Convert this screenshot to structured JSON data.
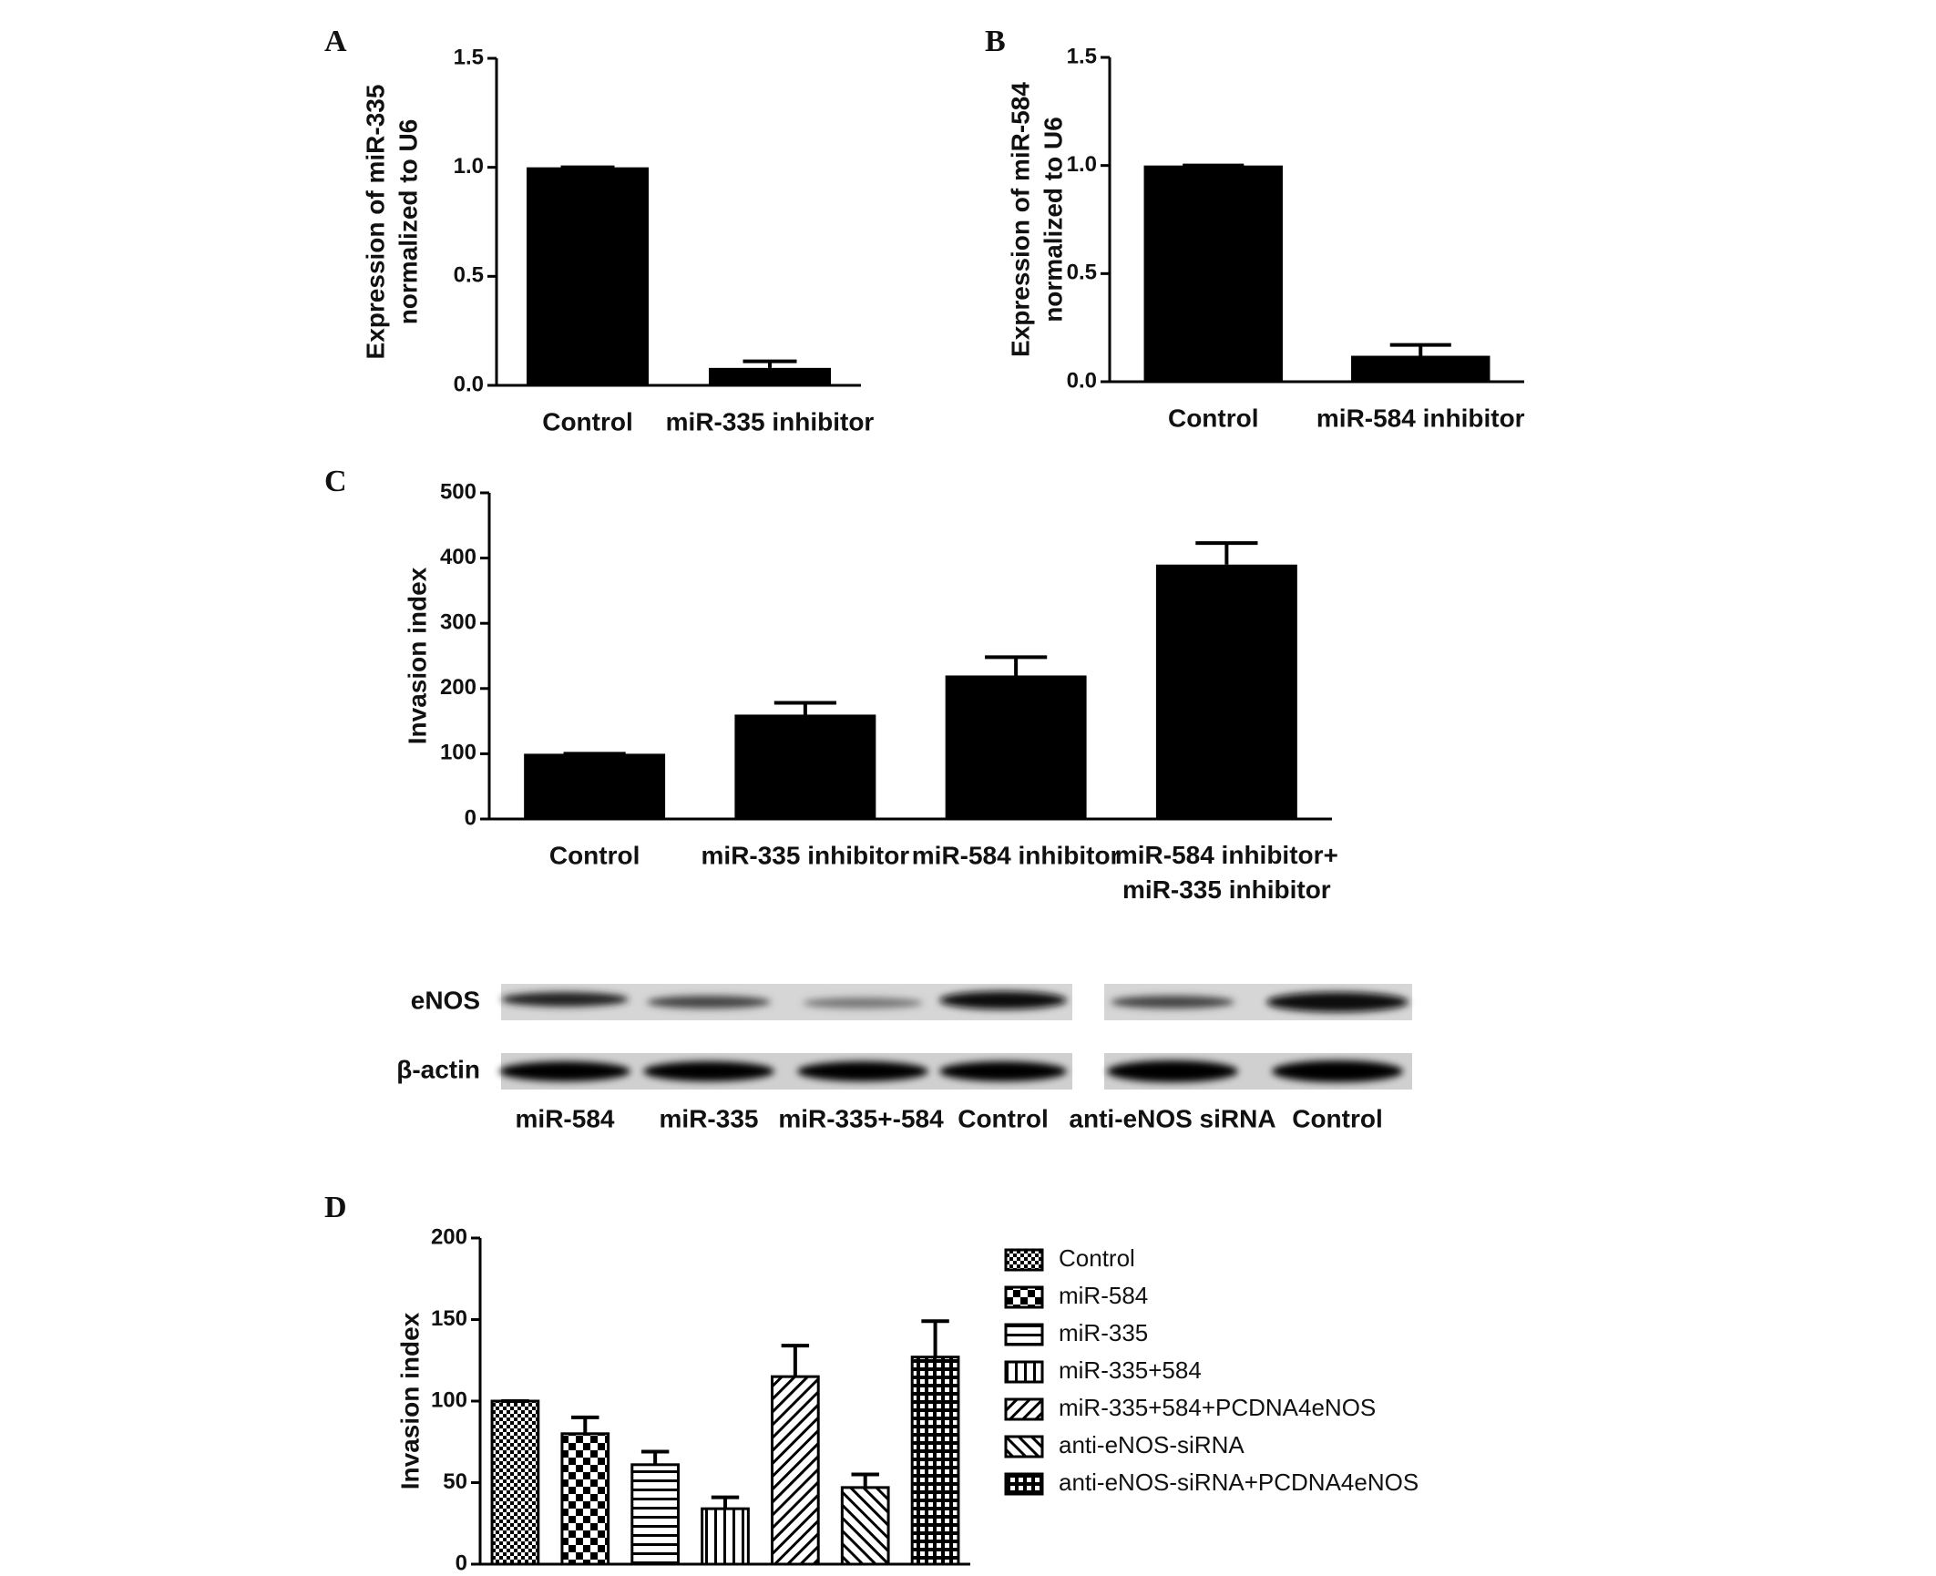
{
  "chart_data": [
    {
      "type": "bar",
      "panel": "A",
      "ylabel": [
        "Expression of miR-335",
        "normalized to U6"
      ],
      "categories": [
        "Control",
        "miR-335 inhibitor"
      ],
      "values": [
        1.0,
        0.08
      ],
      "errors": [
        0,
        0.03
      ],
      "color": "#000000",
      "ylim": [
        0,
        1.5
      ],
      "yticks": [
        {
          "value": 0,
          "label": "0.0"
        },
        {
          "value": 0.5,
          "label": "0.5"
        },
        {
          "value": 1,
          "label": "1.0"
        },
        {
          "value": 1.5,
          "label": "1.5"
        }
      ]
    },
    {
      "type": "bar",
      "panel": "B",
      "ylabel": [
        "Expression of miR-584",
        "normalized to U6"
      ],
      "categories": [
        "Control",
        "miR-584 inhibitor"
      ],
      "values": [
        1.0,
        0.12
      ],
      "errors": [
        0,
        0.05
      ],
      "color": "#000000",
      "ylim": [
        0,
        1.5
      ],
      "yticks": [
        {
          "value": 0,
          "label": "0.0"
        },
        {
          "value": 0.5,
          "label": "0.5"
        },
        {
          "value": 1,
          "label": "1.0"
        },
        {
          "value": 1.5,
          "label": "1.5"
        }
      ]
    },
    {
      "type": "bar",
      "panel": "C",
      "ylabel": [
        "Invasion index"
      ],
      "categories": [
        "Control",
        "miR-335 inhibitor",
        "miR-584 inhibitor",
        "miR-584 inhibitor+\nmiR-335 inhibitor"
      ],
      "values": [
        100,
        160,
        220,
        390
      ],
      "errors": [
        0,
        18,
        28,
        33
      ],
      "color": "#000000",
      "ylim": [
        0,
        500
      ],
      "yticks": [
        0,
        100,
        200,
        300,
        400,
        500
      ]
    },
    {
      "type": "pattern-bar",
      "panel": "D",
      "ylabel": [
        "Invasion index"
      ],
      "series": [
        {
          "name": "Control",
          "pattern": "checker-fine",
          "values": [
            100
          ],
          "errors": [
            0
          ]
        },
        {
          "name": "miR-584",
          "pattern": "checker",
          "values": [
            80
          ],
          "errors": [
            10
          ]
        },
        {
          "name": "miR-335",
          "pattern": "horizontal",
          "values": [
            61
          ],
          "errors": [
            8
          ]
        },
        {
          "name": "miR-335+584",
          "pattern": "vertical",
          "values": [
            34
          ],
          "errors": [
            7
          ]
        },
        {
          "name": "miR-335+584+PCDNA4eNOS",
          "pattern": "diagonal-up",
          "values": [
            115
          ],
          "errors": [
            19
          ]
        },
        {
          "name": "anti-eNOS-siRNA",
          "pattern": "diagonal-down",
          "values": [
            47
          ],
          "errors": [
            8
          ]
        },
        {
          "name": "anti-eNOS-siRNA+PCDNA4eNOS",
          "pattern": "grid",
          "values": [
            127
          ],
          "errors": [
            22
          ]
        }
      ],
      "ylim": [
        0,
        200
      ],
      "yticks": [
        0,
        50,
        100,
        150,
        200
      ]
    }
  ],
  "blot": {
    "rows": [
      "eNOS",
      "β-actin"
    ],
    "lanes": [
      "miR-584",
      "miR-335",
      "miR-335+-584",
      "Control",
      "anti-eNOS siRNA",
      "Control"
    ]
  }
}
